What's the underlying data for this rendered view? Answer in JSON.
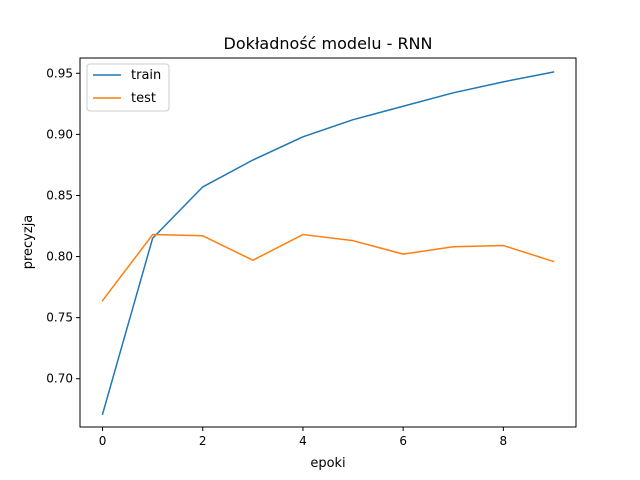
{
  "chart_data": {
    "type": "line",
    "title": "Dokładność modelu - RNN",
    "xlabel": "epoki",
    "ylabel": "precyzja",
    "x": [
      0,
      1,
      2,
      3,
      4,
      5,
      6,
      7,
      8,
      9
    ],
    "xlim": [
      -0.45,
      9.45
    ],
    "ylim": [
      0.6605,
      0.9625
    ],
    "xticks": [
      0,
      2,
      4,
      6,
      8
    ],
    "xtick_labels": [
      "0",
      "2",
      "4",
      "6",
      "8"
    ],
    "yticks": [
      0.7,
      0.75,
      0.8,
      0.85,
      0.9,
      0.95
    ],
    "ytick_labels": [
      "0.70",
      "0.75",
      "0.80",
      "0.85",
      "0.90",
      "0.95"
    ],
    "grid": false,
    "legend_position": "top-left",
    "series": [
      {
        "name": "train",
        "color": "#1f77b4",
        "values": [
          0.671,
          0.815,
          0.857,
          0.879,
          0.898,
          0.912,
          0.923,
          0.934,
          0.943,
          0.951
        ]
      },
      {
        "name": "test",
        "color": "#ff7f0e",
        "values": [
          0.764,
          0.818,
          0.817,
          0.797,
          0.818,
          0.813,
          0.802,
          0.808,
          0.809,
          0.796
        ]
      }
    ]
  }
}
